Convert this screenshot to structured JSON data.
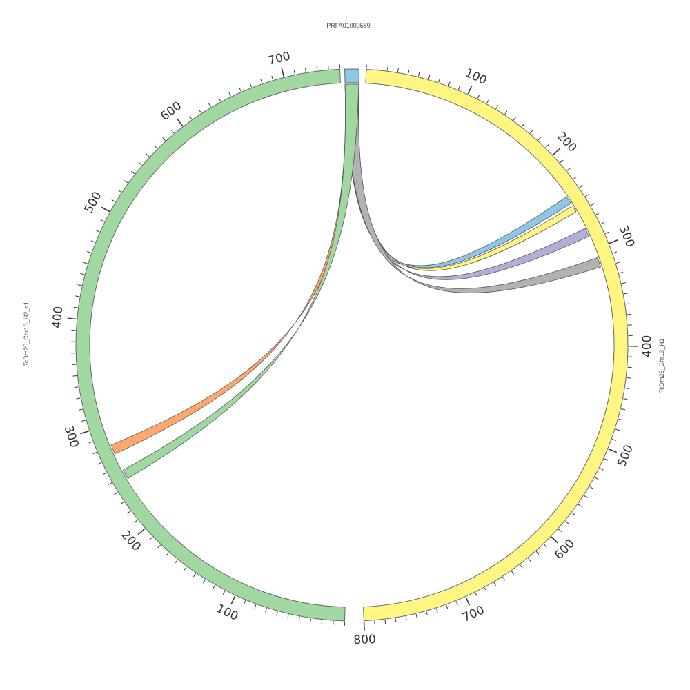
{
  "chart_data": {
    "type": "chord",
    "segments": [
      {
        "name": "PRFA01000589",
        "length": 8,
        "color": "#8ec6e4"
      },
      {
        "name": "TcDm25_Chr13_H1",
        "length": 800,
        "color": "#fff583"
      },
      {
        "name": "TcDm25_Chr13_H2_c1",
        "length": 750,
        "color": "#a1d7a1"
      }
    ],
    "tick_labels": {
      "TcDm25_Chr13_H1": [
        "100",
        "200",
        "300",
        "400",
        "500",
        "600",
        "700",
        "800"
      ],
      "TcDm25_Chr13_H2_c1": [
        "100",
        "200",
        "300",
        "400",
        "500",
        "600",
        "700"
      ]
    },
    "links": [
      {
        "source": "PRFA01000589",
        "source_range": [
          0,
          8
        ],
        "target": "TcDm25_Chr13_H1",
        "target_range": [
          240,
          248
        ],
        "color": "#8ec6e4"
      },
      {
        "source": "PRFA01000589",
        "source_range": [
          0,
          8
        ],
        "target": "TcDm25_Chr13_H1",
        "target_range": [
          251,
          258
        ],
        "color": "#fff583"
      },
      {
        "source": "PRFA01000589",
        "source_range": [
          0,
          8
        ],
        "target": "TcDm25_Chr13_H1",
        "target_range": [
          277,
          286
        ],
        "color": "#b3aed6"
      },
      {
        "source": "PRFA01000589",
        "source_range": [
          0,
          8
        ],
        "target": "TcDm25_Chr13_H1",
        "target_range": [
          309,
          319
        ],
        "color": "#b2b2b2"
      },
      {
        "source": "PRFA01000589",
        "source_range": [
          0,
          8
        ],
        "target": "TcDm25_Chr13_H2_c1",
        "target_range": [
          272,
          281
        ],
        "color": "#ffa86e"
      },
      {
        "source": "PRFA01000589",
        "source_range": [
          0,
          8
        ],
        "target": "TcDm25_Chr13_H2_c1",
        "target_range": [
          246,
          255
        ],
        "color": "#a1d7a1"
      }
    ]
  }
}
